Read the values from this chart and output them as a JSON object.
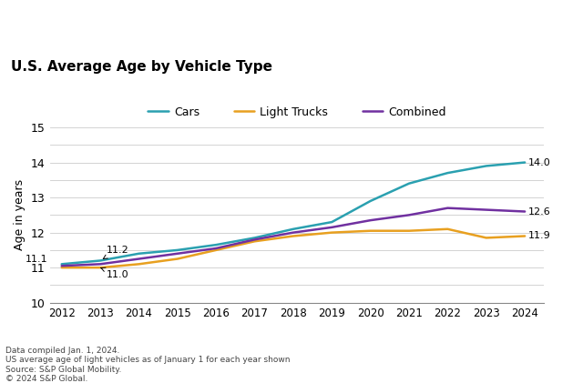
{
  "title": "U.S. Average Age by Vehicle Type",
  "ylabel": "Age in years",
  "years": [
    2012,
    2013,
    2014,
    2015,
    2016,
    2017,
    2018,
    2019,
    2020,
    2021,
    2022,
    2023,
    2024
  ],
  "cars": [
    11.1,
    11.2,
    11.4,
    11.5,
    11.65,
    11.85,
    12.1,
    12.3,
    12.9,
    13.4,
    13.7,
    13.9,
    14.0
  ],
  "light_trucks": [
    11.0,
    11.0,
    11.1,
    11.25,
    11.5,
    11.75,
    11.9,
    12.0,
    12.05,
    12.05,
    12.1,
    11.85,
    11.9
  ],
  "combined": [
    11.05,
    11.1,
    11.25,
    11.4,
    11.55,
    11.8,
    12.0,
    12.15,
    12.35,
    12.5,
    12.7,
    12.65,
    12.6
  ],
  "cars_color": "#2aa0b0",
  "light_trucks_color": "#e8a020",
  "combined_color": "#7030a0",
  "cars_label": "Cars",
  "light_trucks_label": "Light Trucks",
  "combined_label": "Combined",
  "ylim": [
    10,
    15
  ],
  "ytick_positions": [
    10,
    10.5,
    11,
    11.5,
    12,
    12.5,
    13,
    13.5,
    14,
    14.5,
    15
  ],
  "ytick_labels": [
    "10",
    "",
    "11",
    "",
    "12",
    "",
    "13",
    "",
    "14",
    "",
    "15"
  ],
  "footnote_lines": [
    "Data compiled Jan. 1, 2024.",
    "US average age of light vehicles as of January 1 for each year shown",
    "Source: S&P Global Mobility.",
    "© 2024 S&P Global."
  ],
  "ann_cars_2012_val": "11.1",
  "ann_trucks_2013_val": "11.0",
  "ann_cars_2013_val": "11.2",
  "ann_cars_2024_val": "14.0",
  "ann_trucks_2024_val": "11.9",
  "ann_combined_2024_val": "12.6",
  "linewidth": 1.8,
  "figsize": [
    6.4,
    4.21
  ],
  "dpi": 100
}
